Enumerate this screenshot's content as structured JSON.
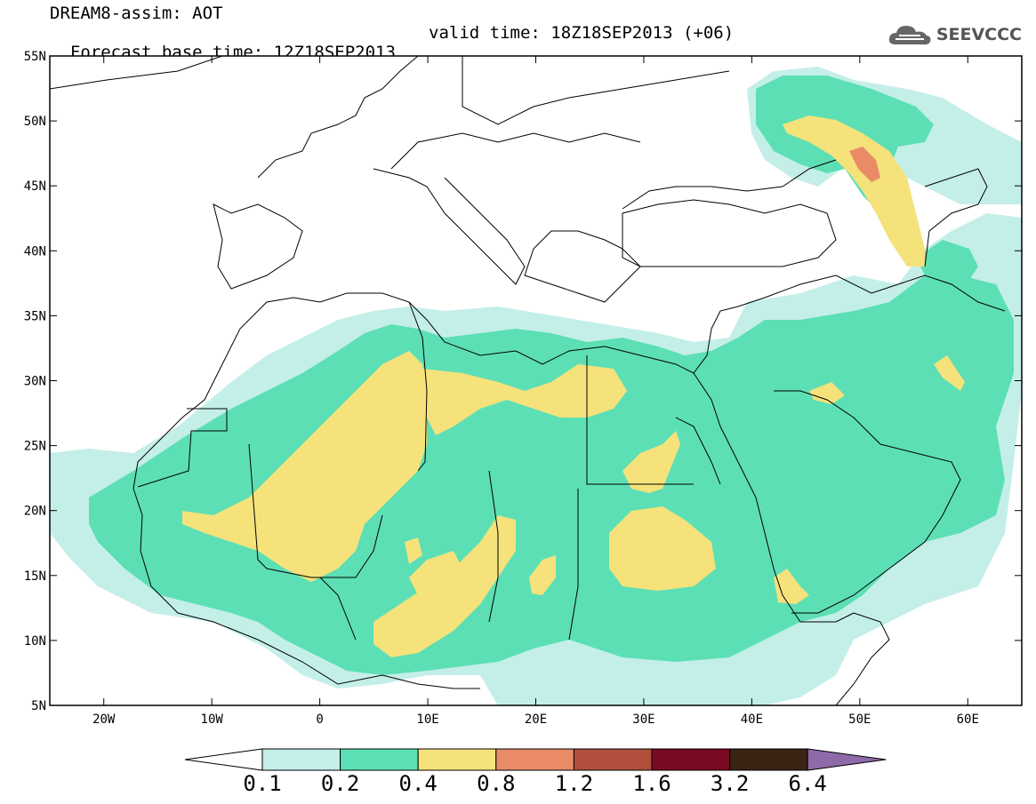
{
  "title": {
    "line1": "DREAM8-assim: AOT",
    "base_time": "Forecast base time: 12Z18SEP2013",
    "valid_time": "valid time: 18Z18SEP2013 (+06)"
  },
  "logo": {
    "text": "SEEVCCC",
    "icon": "cloud-icon"
  },
  "map": {
    "projection": "lat-lon",
    "lon_range": [
      -25,
      65
    ],
    "lat_range": [
      5,
      55
    ],
    "lat_ticks": [
      "5N",
      "10N",
      "15N",
      "20N",
      "25N",
      "30N",
      "35N",
      "40N",
      "45N",
      "50N",
      "55N"
    ],
    "lon_ticks": [
      "20W",
      "10W",
      "0",
      "10E",
      "20E",
      "30E",
      "40E",
      "50E",
      "60E"
    ],
    "field": "Aerosol Optical Thickness"
  },
  "colorbar": {
    "levels": [
      "0.1",
      "0.2",
      "0.4",
      "0.8",
      "1.2",
      "1.6",
      "3.2",
      "6.4"
    ],
    "colors": [
      "#c4efe9",
      "#5ddfb5",
      "#f5e27b",
      "#e88b66",
      "#b04f3c",
      "#7a0a22",
      "#3b2414",
      "#8e6aa8"
    ],
    "under_color": "#ffffff"
  }
}
